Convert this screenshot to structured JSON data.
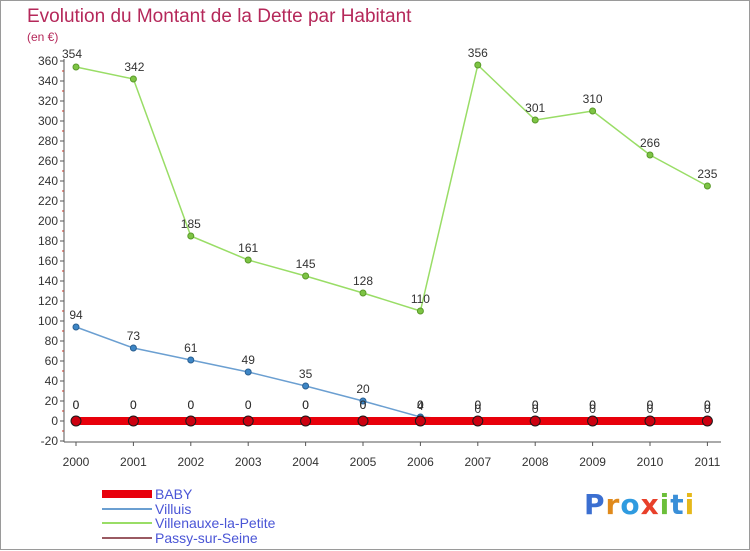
{
  "title": "Evolution du Montant de la Dette par Habitant",
  "unit_label": "(en €)",
  "logo": {
    "letters": [
      "P",
      "r",
      "o",
      "x",
      "i",
      "t",
      "i"
    ],
    "colors": [
      "#3b6fd1",
      "#e08a1c",
      "#2f9be0",
      "#e8402a",
      "#6cbf3a",
      "#3a8fd8",
      "#e6b81a"
    ]
  },
  "chart_data": {
    "type": "line",
    "title": "Evolution du Montant de la Dette par Habitant",
    "ylabel": "(en €)",
    "xlabel": "",
    "x": [
      "2000",
      "2001",
      "2002",
      "2003",
      "2004",
      "2005",
      "2006",
      "2007",
      "2008",
      "2009",
      "2010",
      "2011"
    ],
    "ylim": [
      -20,
      360
    ],
    "yticks": [
      "-20",
      "0",
      "20",
      "40",
      "60",
      "80",
      "100",
      "120",
      "140",
      "160",
      "180",
      "200",
      "220",
      "240",
      "260",
      "280",
      "300",
      "320",
      "340",
      "360"
    ],
    "grid": false,
    "legend_position": "bottom-left",
    "series": [
      {
        "name": "BABY",
        "color": "#e8000b",
        "values": [
          0,
          0,
          0,
          0,
          0,
          0,
          0,
          0,
          0,
          0,
          0,
          0
        ],
        "labels": [
          "0",
          "0",
          "0",
          "0",
          "0",
          "0",
          "0",
          "0",
          "0",
          "0",
          "0",
          "0"
        ]
      },
      {
        "name": "Villuis",
        "color": "#6b9fd1",
        "values": [
          94,
          73,
          61,
          49,
          35,
          20,
          4,
          0,
          0,
          0,
          0,
          0
        ],
        "labels": [
          "94",
          "73",
          "61",
          "49",
          "35",
          "20",
          "4",
          "0",
          "0",
          "0",
          "0",
          "0"
        ]
      },
      {
        "name": "Villenauxe-la-Petite",
        "color": "#99dd66",
        "values": [
          354,
          342,
          185,
          161,
          145,
          128,
          110,
          356,
          301,
          310,
          266,
          235
        ],
        "labels": [
          "354",
          "342",
          "185",
          "161",
          "145",
          "128",
          "110",
          "356",
          "301",
          "310",
          "266",
          "235"
        ]
      },
      {
        "name": "Passy-sur-Seine",
        "color": "#9a5a62",
        "values": [
          0,
          0,
          0,
          0,
          0,
          0,
          0,
          0,
          0,
          0,
          0,
          0
        ],
        "labels": [
          "0",
          "0",
          "0",
          "0",
          "0",
          "0",
          "0",
          "0",
          "0",
          "0",
          "0",
          "0"
        ]
      }
    ]
  }
}
